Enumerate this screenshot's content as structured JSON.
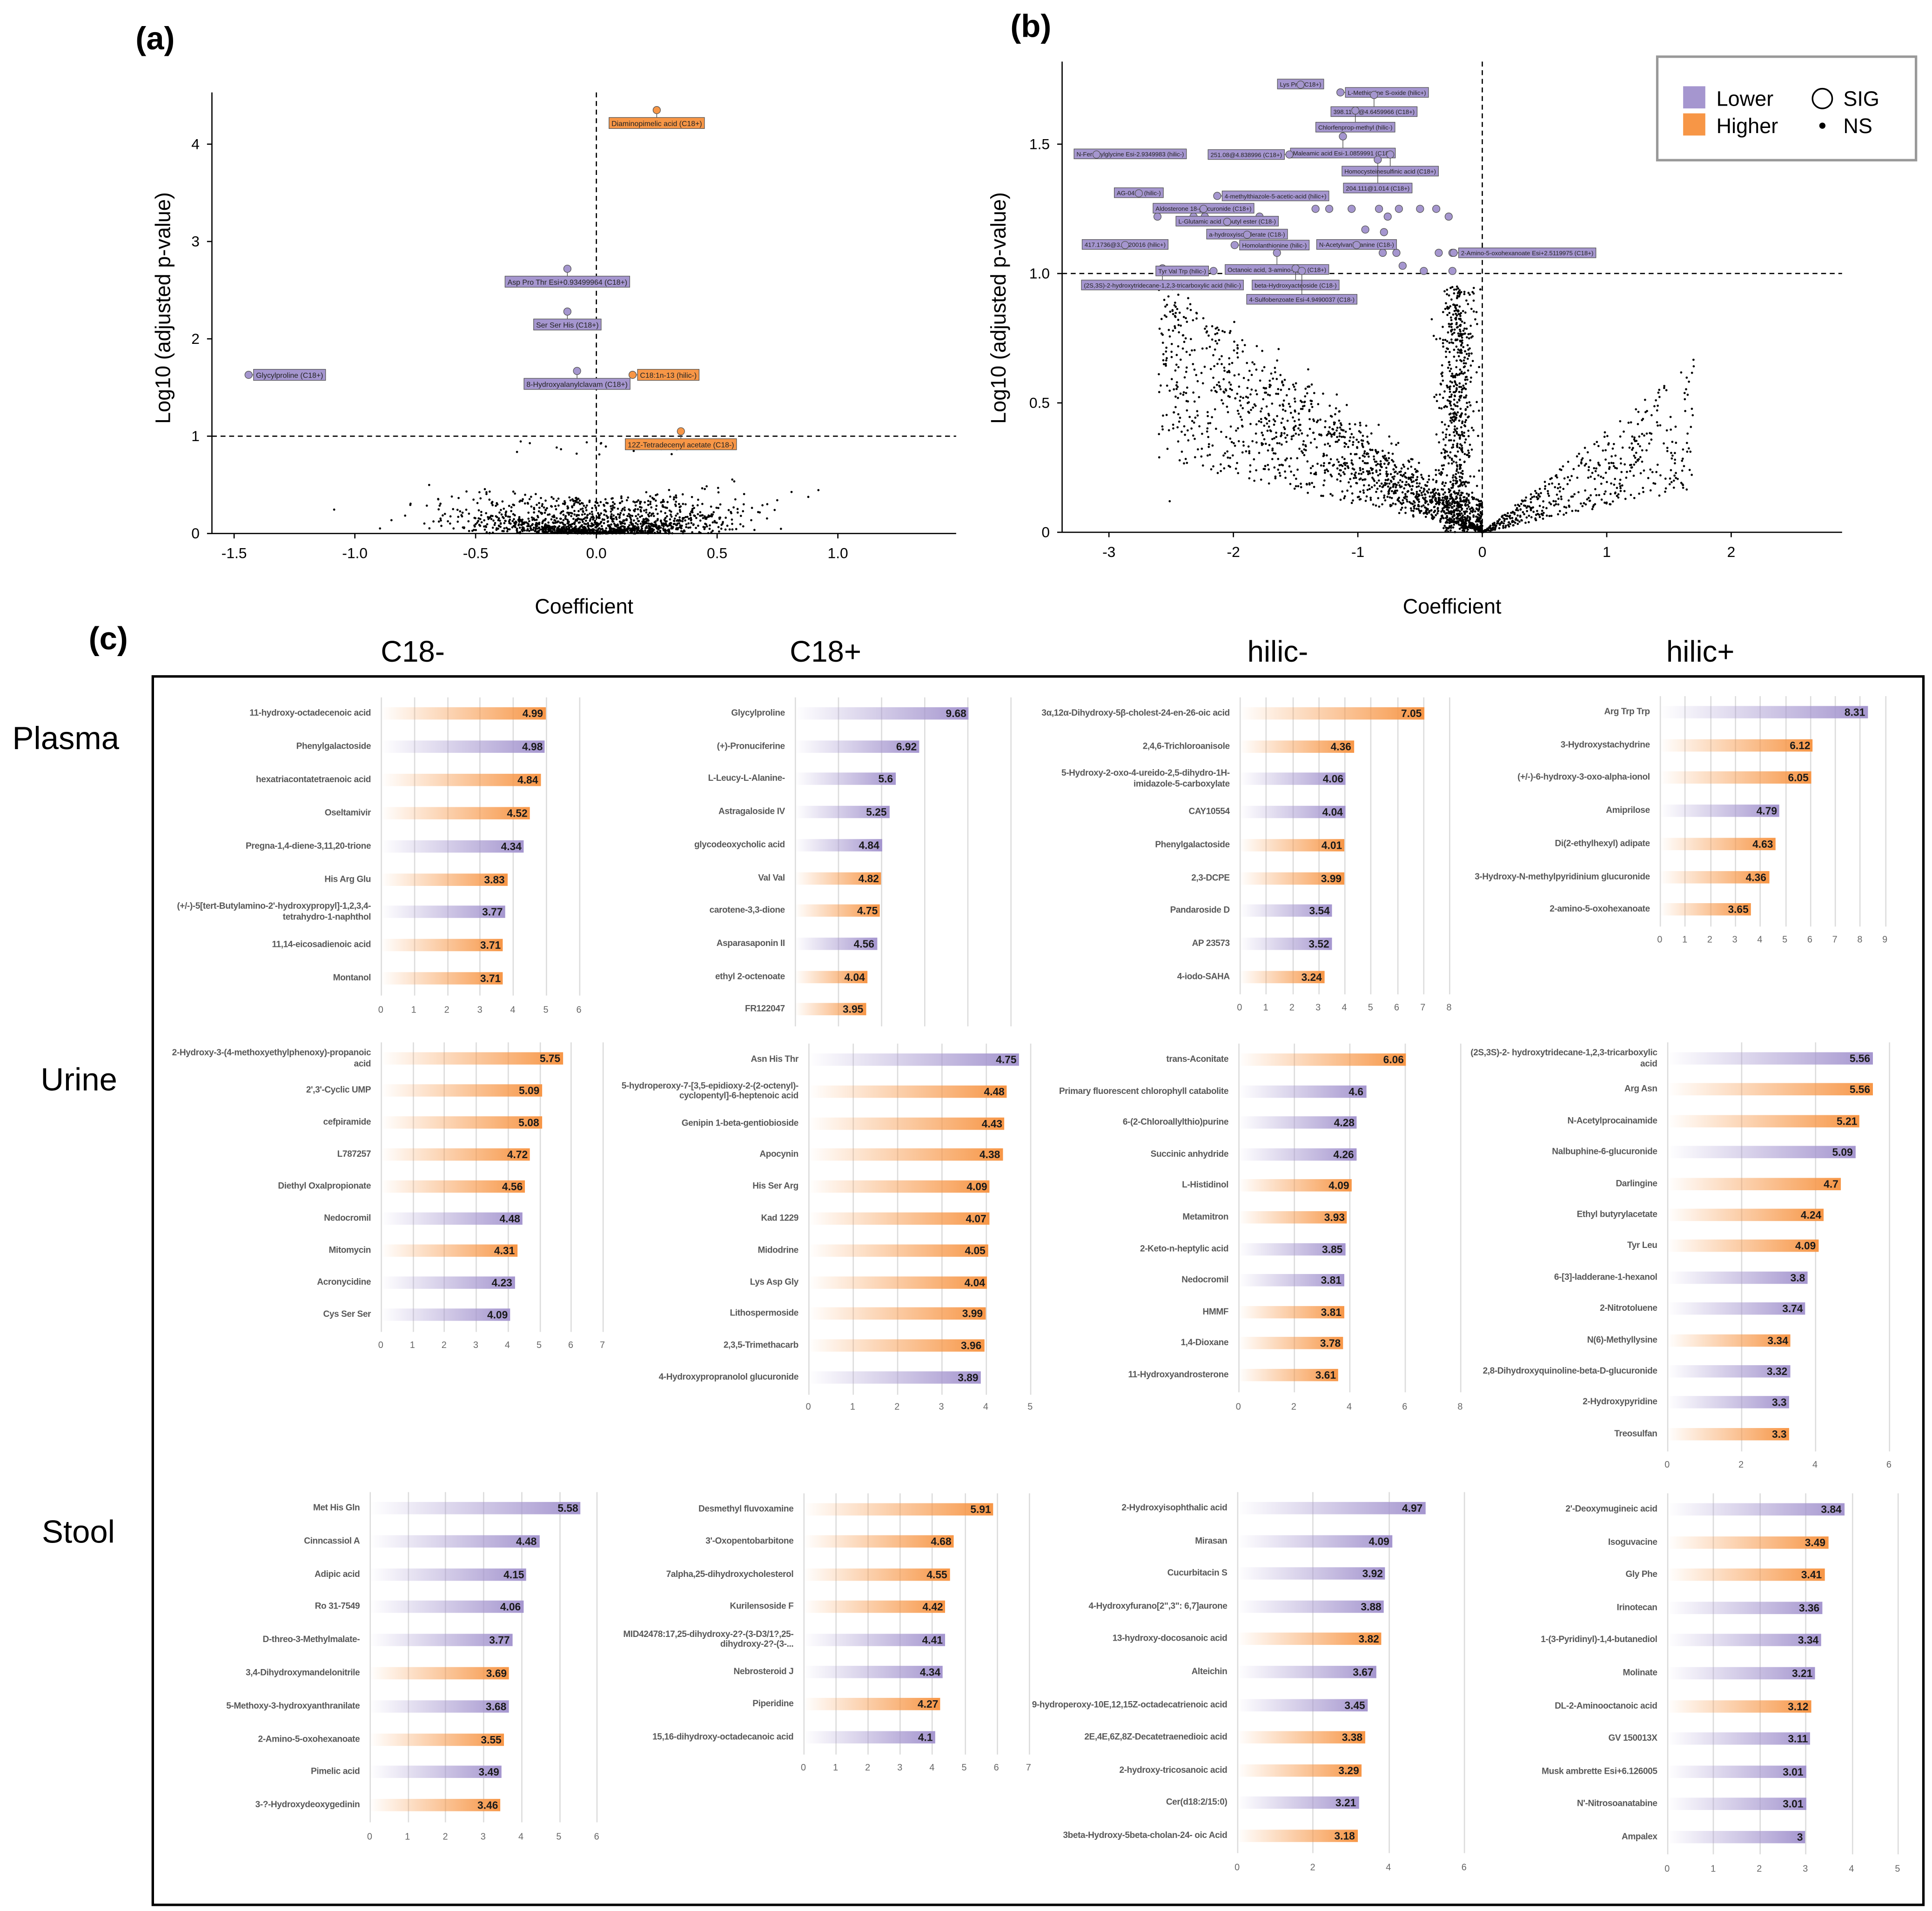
{
  "figure": {
    "panel_labels": {
      "a": "(a)",
      "b": "(b)",
      "c": "(c)"
    },
    "column_headers": [
      "C18-",
      "C18+",
      "hilic-",
      "hilic+"
    ],
    "row_headers": [
      "Plasma",
      "Urine",
      "Stool"
    ],
    "colors": {
      "Lower": "#a596cf",
      "Higher": "#f79646"
    }
  },
  "chart_data": [
    {
      "type": "scatter",
      "panel": "(a)",
      "xlabel": "Coefficient",
      "ylabel": "Log10 (adjusted p-value)",
      "xticks": [
        -1.5,
        -1.0,
        -0.5,
        0.0,
        0.5,
        1.0
      ],
      "xtick_labels": [
        "-1.5",
        "-1.0",
        "-0.5",
        "0.0",
        "0.5",
        "1.0"
      ],
      "yticks": [
        0,
        1,
        2,
        3,
        4
      ],
      "ytick_labels": [
        "0",
        "1",
        "2",
        "3",
        "4"
      ],
      "xlim": [
        -1.55,
        1.5
      ],
      "ylim": [
        0,
        4.5
      ],
      "threshold_y": 1,
      "threshold_x": 0,
      "labeled_points": [
        {
          "label": "Diaminopimelic acid (C18+)",
          "x": 0.25,
          "y": 4.35,
          "direction": "Higher"
        },
        {
          "label": "Asp Pro Thr Esi+0.93499964 (C18+)",
          "x": -0.12,
          "y": 2.72,
          "direction": "Lower"
        },
        {
          "label": "Ser Ser His (C18+)",
          "x": -0.12,
          "y": 2.28,
          "direction": "Lower"
        },
        {
          "label": "8-Hydroxyalanylclavam (C18+)",
          "x": -0.08,
          "y": 1.67,
          "direction": "Lower"
        },
        {
          "label": "C18:1n-13 (hilic-)",
          "x": 0.15,
          "y": 1.63,
          "direction": "Higher"
        },
        {
          "label": "12Z-Tetradecenyl acetate (C18-)",
          "x": 0.35,
          "y": 1.05,
          "direction": "Higher"
        },
        {
          "label": "Glycylproline (C18+)",
          "x": -1.44,
          "y": 1.63,
          "direction": "Lower"
        }
      ]
    },
    {
      "type": "scatter",
      "panel": "(b)",
      "xlabel": "Coefficient",
      "ylabel": "Log10 (adjusted p-value)",
      "xticks": [
        -3,
        -2,
        -1,
        0,
        1,
        2
      ],
      "xtick_labels": [
        "-3",
        "-2",
        "-1",
        "0",
        "1",
        "2"
      ],
      "yticks": [
        0,
        0.5,
        1.0,
        1.5
      ],
      "ytick_labels": [
        "0",
        "0.5",
        "1.0",
        "1.5"
      ],
      "xlim": [
        -3.4,
        2.9
      ],
      "ylim": [
        0,
        1.8
      ],
      "threshold_y": 1,
      "threshold_x": 0,
      "legend": {
        "position": "top-right",
        "items": [
          {
            "label": "Lower",
            "kind": "fill"
          },
          {
            "label": "Higher",
            "kind": "fill"
          },
          {
            "label": "SIG",
            "kind": "open-circle"
          },
          {
            "label": "NS",
            "kind": "dot"
          }
        ]
      },
      "labeled_points": [
        {
          "label": "Lys Pro (C18+)",
          "x": -1.46,
          "y": 1.73,
          "direction": "Lower"
        },
        {
          "label": "L-Methionine S-oxide (hilic+)",
          "x": -1.14,
          "y": 1.7,
          "direction": "Lower"
        },
        {
          "label": "398.1179@4.6459966 (C18+)",
          "x": -0.87,
          "y": 1.69,
          "direction": "Lower"
        },
        {
          "label": "Chlorfenprop-methyl (hilic-)",
          "x": -1.02,
          "y": 1.63,
          "direction": "Lower"
        },
        {
          "label": "Maleamic acid Esi-1.0859991 (C18-)",
          "x": -1.12,
          "y": 1.53,
          "direction": "Lower"
        },
        {
          "label": "251.08@4.838996 (C18+)",
          "x": -1.55,
          "y": 1.46,
          "direction": "Lower"
        },
        {
          "label": "Homocysteinesulfinic acid (C18+)",
          "x": -0.74,
          "y": 1.46,
          "direction": "Lower"
        },
        {
          "label": "204.111@1.014 (C18+)",
          "x": -0.84,
          "y": 1.44,
          "direction": "Lower"
        },
        {
          "label": "N-Feruloylglycine Esi-2.9349983 (hilic-)",
          "x": -3.1,
          "y": 1.46,
          "direction": "Lower"
        },
        {
          "label": "4-methylthiazole-5-acetic-acid (hilic+)",
          "x": -2.13,
          "y": 1.3,
          "direction": "Lower"
        },
        {
          "label": "AG-041R (hilic-)",
          "x": -2.76,
          "y": 1.31,
          "direction": "Lower"
        },
        {
          "label": "Aldosterone 18-glucuronide (C18+)",
          "x": -2.24,
          "y": 1.25,
          "direction": "Lower"
        },
        {
          "label": "L-Glutamic acid n-butyl ester (C18-)",
          "x": -2.05,
          "y": 1.2,
          "direction": "Lower"
        },
        {
          "label": "417.1736@3.1620016 (hilic+)",
          "x": -2.87,
          "y": 1.11,
          "direction": "Lower"
        },
        {
          "label": "a-hydroxyisovalerate (C18-)",
          "x": -1.89,
          "y": 1.15,
          "direction": "Lower"
        },
        {
          "label": "Homolanthionine (hilic-)",
          "x": -1.99,
          "y": 1.11,
          "direction": "Lower"
        },
        {
          "label": "N-Acetylvanilalanine (C18-)",
          "x": -1.01,
          "y": 1.11,
          "direction": "Lower"
        },
        {
          "label": "(2S,3S)-2-hydroxytridecane-1,2,3-tricarboxylic acid (hilic-)",
          "x": -2.57,
          "y": 1.02,
          "direction": "Lower"
        },
        {
          "label": "Octanoic acid, 3-amino-, (1)- (C18+)",
          "x": -1.65,
          "y": 1.08,
          "direction": "Lower"
        },
        {
          "label": "2-Amino-5-oxohexanoate Esi+2.5119975 (C18+)",
          "x": -0.23,
          "y": 1.08,
          "direction": "Lower"
        },
        {
          "label": "beta-Hydroxyacteoside (C18-)",
          "x": -1.5,
          "y": 1.02,
          "direction": "Lower"
        },
        {
          "label": "Tyr Val Trp (hilic-)",
          "x": -2.16,
          "y": 1.01,
          "direction": "Lower"
        },
        {
          "label": "4-Sulfobenzoate Esi-4.9490037 (C18-)",
          "x": -1.45,
          "y": 1.01,
          "direction": "Lower"
        }
      ],
      "other_sig_points": [
        [
          -2.56,
          1.25
        ],
        [
          -2.54,
          1.25
        ],
        [
          -2.61,
          1.22
        ],
        [
          -2.32,
          1.22
        ],
        [
          -2.23,
          1.22
        ],
        [
          -1.79,
          1.22
        ],
        [
          -1.34,
          1.25
        ],
        [
          -1.23,
          1.25
        ],
        [
          -1.05,
          1.25
        ],
        [
          -0.83,
          1.25
        ],
        [
          -0.67,
          1.25
        ],
        [
          -0.5,
          1.25
        ],
        [
          -0.37,
          1.25
        ],
        [
          -0.27,
          1.22
        ],
        [
          -0.76,
          1.22
        ],
        [
          -0.94,
          1.17
        ],
        [
          -0.79,
          1.16
        ],
        [
          -1.73,
          1.11
        ],
        [
          -1.68,
          1.11
        ],
        [
          -0.8,
          1.08
        ],
        [
          -0.69,
          1.08
        ],
        [
          -0.35,
          1.08
        ],
        [
          -0.24,
          1.08
        ],
        [
          -0.47,
          1.01
        ],
        [
          -0.24,
          1.01
        ],
        [
          -0.64,
          1.03
        ]
      ]
    },
    {
      "type": "bar",
      "orientation": "horizontal",
      "sample": "Plasma",
      "mode": "C18-",
      "xticks": [
        0,
        1,
        2,
        3,
        4,
        5,
        6
      ],
      "categories": [
        "11-hydroxy-octadecenoic acid",
        "Phenylgalactoside",
        "hexatriacontatetraenoic acid",
        "Oseltamivir",
        "Pregna-1,4-diene-3,11,20-trione",
        "His Arg Glu",
        "(+/-)-5[tert-Butylamino-2'-hydroxypropyl]-1,2,3,4-tetrahydro-1-naphthol",
        "11,14-eicosadienoic acid",
        "Montanol"
      ],
      "values": [
        4.99,
        4.98,
        4.84,
        4.52,
        4.34,
        3.83,
        3.77,
        3.71,
        3.71
      ],
      "directions": [
        "Higher",
        "Lower",
        "Higher",
        "Higher",
        "Lower",
        "Higher",
        "Lower",
        "Higher",
        "Higher"
      ]
    },
    {
      "type": "bar",
      "orientation": "horizontal",
      "sample": "Plasma",
      "mode": "C18+",
      "xticks": [],
      "categories": [
        "Glycylproline",
        "(+)-Pronuciferine",
        "L-Leucy-L-Alanine-",
        "Astragaloside IV",
        "glycodeoxycholic acid",
        "Val Val",
        "carotene-3,3-dione",
        "Asparasaponin II",
        "ethyl 2-octenoate",
        "FR122047"
      ],
      "values": [
        9.68,
        6.92,
        5.6,
        5.25,
        4.84,
        4.82,
        4.75,
        4.56,
        4.04,
        3.95
      ],
      "directions": [
        "Lower",
        "Lower",
        "Lower",
        "Lower",
        "Lower",
        "Higher",
        "Higher",
        "Lower",
        "Higher",
        "Higher"
      ]
    },
    {
      "type": "bar",
      "orientation": "horizontal",
      "sample": "Plasma",
      "mode": "hilic-",
      "xticks": [
        0,
        1,
        2,
        3,
        4,
        5,
        6,
        7,
        8
      ],
      "categories": [
        "3α,12α-Dihydroxy-5β-cholest-24-en-26-oic acid",
        "2,4,6-Trichloroanisole",
        "5-Hydroxy-2-oxo-4-ureido-2,5-dihydro-1H-imidazole-5-carboxylate",
        "CAY10554",
        "Phenylgalactoside",
        "2,3-DCPE",
        "Pandaroside D",
        "AP 23573",
        "4-iodo-SAHA"
      ],
      "values": [
        7.05,
        4.36,
        4.06,
        4.04,
        4.01,
        3.99,
        3.54,
        3.52,
        3.24
      ],
      "directions": [
        "Higher",
        "Higher",
        "Lower",
        "Lower",
        "Higher",
        "Higher",
        "Lower",
        "Lower",
        "Higher"
      ]
    },
    {
      "type": "bar",
      "orientation": "horizontal",
      "sample": "Plasma",
      "mode": "hilic+",
      "xticks": [
        0,
        1,
        2,
        3,
        4,
        5,
        6,
        7,
        8,
        9
      ],
      "categories": [
        "Arg Trp Trp",
        "3-Hydroxystachydrine",
        "(+/-)-6-hydroxy-3-oxo-alpha-ionol",
        "Amiprilose",
        "Di(2-ethylhexyl) adipate",
        "3-Hydroxy-N-methylpyridinium glucuronide",
        "2-amino-5-oxohexanoate"
      ],
      "values": [
        8.31,
        6.12,
        6.05,
        4.79,
        4.63,
        4.36,
        3.65
      ],
      "directions": [
        "Lower",
        "Higher",
        "Higher",
        "Lower",
        "Higher",
        "Higher",
        "Higher"
      ]
    },
    {
      "type": "bar",
      "orientation": "horizontal",
      "sample": "Urine",
      "mode": "C18-",
      "xticks": [
        0,
        1,
        2,
        3,
        4,
        5,
        6,
        7
      ],
      "categories": [
        "2-Hydroxy-3-(4-methoxyethylphenoxy)-propanoic acid",
        "2',3'-Cyclic UMP",
        "cefpiramide",
        "L787257",
        "Diethyl Oxalpropionate",
        "Nedocromil",
        "Mitomycin",
        "Acronycidine",
        "Cys Ser Ser"
      ],
      "values": [
        5.75,
        5.09,
        5.08,
        4.72,
        4.56,
        4.48,
        4.31,
        4.23,
        4.09
      ],
      "directions": [
        "Higher",
        "Higher",
        "Higher",
        "Higher",
        "Higher",
        "Lower",
        "Higher",
        "Lower",
        "Lower"
      ]
    },
    {
      "type": "bar",
      "orientation": "horizontal",
      "sample": "Urine",
      "mode": "C18+",
      "xticks": [
        0,
        1,
        2,
        3,
        4,
        5
      ],
      "categories": [
        "Asn His Thr",
        "5-hydroperoxy-7-[3,5-epidioxy-2-(2-octenyl)-cyclopentyl]-6-heptenoic acid",
        "Genipin 1-beta-gentiobioside",
        "Apocynin",
        "His Ser Arg",
        "Kad 1229",
        "Midodrine",
        "Lys Asp Gly",
        "Lithospermoside",
        "2,3,5-Trimethacarb",
        "4-Hydroxypropranolol glucuronide"
      ],
      "values": [
        4.75,
        4.48,
        4.43,
        4.38,
        4.09,
        4.07,
        4.05,
        4.04,
        3.99,
        3.96,
        3.89
      ],
      "directions": [
        "Lower",
        "Higher",
        "Higher",
        "Higher",
        "Higher",
        "Higher",
        "Higher",
        "Higher",
        "Higher",
        "Higher",
        "Lower"
      ]
    },
    {
      "type": "bar",
      "orientation": "horizontal",
      "sample": "Urine",
      "mode": "hilic-",
      "xticks": [
        0,
        2,
        4,
        6,
        8
      ],
      "categories": [
        "trans-Aconitate",
        "Primary fluorescent chlorophyll catabolite",
        "6-(2-Chloroallylthio)purine",
        "Succinic anhydride",
        "L-Histidinol",
        "Metamitron",
        "2-Keto-n-heptylic acid",
        "Nedocromil",
        "HMMF",
        "1,4-Dioxane",
        "11-Hydroxyandrosterone"
      ],
      "values": [
        6.06,
        4.6,
        4.28,
        4.26,
        4.09,
        3.93,
        3.85,
        3.81,
        3.81,
        3.78,
        3.61
      ],
      "directions": [
        "Higher",
        "Lower",
        "Lower",
        "Lower",
        "Higher",
        "Higher",
        "Lower",
        "Lower",
        "Higher",
        "Higher",
        "Higher"
      ]
    },
    {
      "type": "bar",
      "orientation": "horizontal",
      "sample": "Urine",
      "mode": "hilic+",
      "xticks": [
        0,
        2,
        4,
        6
      ],
      "categories": [
        "(2S,3S)-2- hydroxytridecane-1,2,3-tricarboxylic acid",
        "Arg Asn",
        "N-Acetylprocainamide",
        "Nalbuphine-6-glucuronide",
        "Darlingine",
        "Ethyl butyrylacetate",
        "Tyr Leu",
        "6-[3]-ladderane-1-hexanol",
        "2-Nitrotoluene",
        "N(6)-Methyllysine",
        "2,8-Dihydroxyquinoline-beta-D-glucuronide",
        "2-Hydroxypyridine",
        "Treosulfan"
      ],
      "values": [
        5.56,
        5.56,
        5.21,
        5.09,
        4.7,
        4.24,
        4.09,
        3.8,
        3.74,
        3.34,
        3.32,
        3.3,
        3.3
      ],
      "directions": [
        "Lower",
        "Higher",
        "Higher",
        "Lower",
        "Higher",
        "Higher",
        "Higher",
        "Lower",
        "Lower",
        "Higher",
        "Lower",
        "Lower",
        "Higher"
      ]
    },
    {
      "type": "bar",
      "orientation": "horizontal",
      "sample": "Stool",
      "mode": "C18-",
      "xticks": [
        0,
        1,
        2,
        3,
        4,
        5,
        6
      ],
      "categories": [
        "Met His Gln",
        "Cinncassiol A",
        "Adipic acid",
        "Ro 31-7549",
        "D-threo-3-Methylmalate-",
        "3,4-Dihydroxymandelonitrile",
        "5-Methoxy-3-hydroxyanthranilate",
        "2-Amino-5-oxohexanoate",
        "Pimelic acid",
        "3-?-Hydroxydeoxygedinin"
      ],
      "values": [
        5.58,
        4.48,
        4.15,
        4.06,
        3.77,
        3.69,
        3.68,
        3.55,
        3.49,
        3.46
      ],
      "directions": [
        "Lower",
        "Lower",
        "Lower",
        "Lower",
        "Lower",
        "Higher",
        "Lower",
        "Higher",
        "Lower",
        "Higher"
      ]
    },
    {
      "type": "bar",
      "orientation": "horizontal",
      "sample": "Stool",
      "mode": "C18+",
      "xticks": [
        0,
        1,
        2,
        3,
        4,
        5,
        6,
        7
      ],
      "categories": [
        "Desmethyl fluvoxamine",
        "3'-Oxopentobarbitone",
        "7alpha,25-dihydroxycholesterol",
        "Kurilensoside F",
        "MID42478:17,25-dihydroxy-2?-(3-D3/1?,25-dihydroxy-2?-(3-...",
        "Nebrosteroid J",
        "Piperidine",
        "15,16-dihydroxy-octadecanoic acid"
      ],
      "values": [
        5.91,
        4.68,
        4.55,
        4.42,
        4.41,
        4.34,
        4.27,
        4.1
      ],
      "directions": [
        "Higher",
        "Higher",
        "Higher",
        "Higher",
        "Lower",
        "Lower",
        "Higher",
        "Lower"
      ]
    },
    {
      "type": "bar",
      "orientation": "horizontal",
      "sample": "Stool",
      "mode": "hilic-",
      "xticks": [
        0,
        2,
        4,
        6
      ],
      "categories": [
        "2-Hydroxyisophthalic acid",
        "Mirasan",
        "Cucurbitacin S",
        "4-Hydroxyfurano[2\",3\": 6,7]aurone",
        "13-hydroxy-docosanoic acid",
        "Alteichin",
        "9-hydroperoxy-10E,12,15Z-octadecatrienoic acid",
        "2E,4E,6Z,8Z-Decatetraenedioic acid",
        "2-hydroxy-tricosanoic acid",
        "Cer(d18:2/15:0)",
        "3beta-Hydroxy-5beta-cholan-24- oic Acid"
      ],
      "values": [
        4.97,
        4.09,
        3.92,
        3.88,
        3.82,
        3.67,
        3.45,
        3.38,
        3.29,
        3.21,
        3.18
      ],
      "directions": [
        "Lower",
        "Lower",
        "Lower",
        "Lower",
        "Higher",
        "Lower",
        "Lower",
        "Higher",
        "Higher",
        "Lower",
        "Higher"
      ]
    },
    {
      "type": "bar",
      "orientation": "horizontal",
      "sample": "Stool",
      "mode": "hilic+",
      "xticks": [
        0,
        1,
        2,
        3,
        4,
        5
      ],
      "categories": [
        "2'-Deoxymugineic acid",
        "Isoguvacine",
        "Gly Phe",
        "Irinotecan",
        "1-(3-Pyridinyl)-1,4-butanediol",
        "Molinate",
        "DL-2-Aminooctanoic acid",
        "GV 150013X",
        "Musk ambrette Esi+6.126005",
        "N'-Nitrosoanatabine",
        "Ampalex"
      ],
      "values": [
        3.84,
        3.49,
        3.41,
        3.36,
        3.34,
        3.21,
        3.12,
        3.11,
        3.01,
        3.01,
        3
      ],
      "directions": [
        "Lower",
        "Higher",
        "Higher",
        "Lower",
        "Lower",
        "Lower",
        "Higher",
        "Lower",
        "Lower",
        "Lower",
        "Lower"
      ]
    }
  ]
}
